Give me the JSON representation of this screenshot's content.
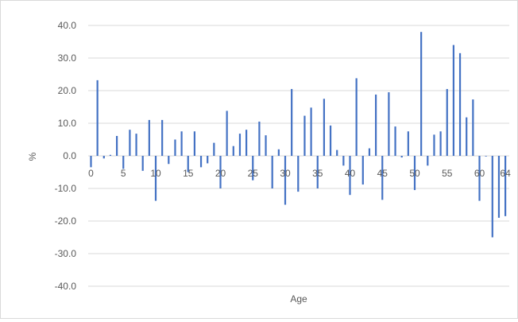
{
  "chart_data": {
    "type": "bar",
    "xlabel": "Age",
    "ylabel": "%",
    "ylim": [
      -40,
      40
    ],
    "y_ticks": [
      "40.0",
      "30.0",
      "20.0",
      "10.0",
      "0.0",
      "-10.0",
      "-20.0",
      "-30.0",
      "-40.0"
    ],
    "x_tick_labels": [
      "0",
      "5",
      "10",
      "15",
      "20",
      "25",
      "30",
      "35",
      "40",
      "45",
      "50",
      "55",
      "60",
      "64"
    ],
    "grid": "horizontal",
    "legend": "none",
    "bar_color": "#4472c4",
    "x": [
      0,
      1,
      2,
      3,
      4,
      5,
      6,
      7,
      8,
      9,
      10,
      11,
      12,
      13,
      14,
      15,
      16,
      17,
      18,
      19,
      20,
      21,
      22,
      23,
      24,
      25,
      26,
      27,
      28,
      29,
      30,
      31,
      32,
      33,
      34,
      35,
      36,
      37,
      38,
      39,
      40,
      41,
      42,
      43,
      44,
      45,
      46,
      47,
      48,
      49,
      50,
      51,
      52,
      53,
      54,
      55,
      56,
      57,
      58,
      59,
      60,
      61,
      62,
      63,
      64
    ],
    "values": [
      -3.5,
      23.2,
      -0.8,
      0.3,
      6.1,
      -4.0,
      8.0,
      6.8,
      -4.6,
      11.0,
      -13.8,
      11.0,
      -2.5,
      5.0,
      7.5,
      -5.0,
      7.5,
      -3.5,
      -2.3,
      4.0,
      -10.0,
      13.8,
      3.0,
      6.8,
      8.0,
      -7.5,
      10.5,
      6.3,
      -10.0,
      2.0,
      -15.0,
      20.5,
      -11.0,
      12.3,
      14.8,
      -10.0,
      17.5,
      9.3,
      1.8,
      -3.0,
      -12.0,
      23.8,
      -8.8,
      2.3,
      18.8,
      -13.5,
      19.5,
      9.0,
      -0.5,
      7.5,
      -10.5,
      38.0,
      -3.0,
      6.5,
      7.5,
      20.5,
      34.0,
      31.5,
      11.8,
      17.3,
      -13.8,
      -0.2,
      -25.0,
      -19.0,
      -18.5
    ]
  }
}
